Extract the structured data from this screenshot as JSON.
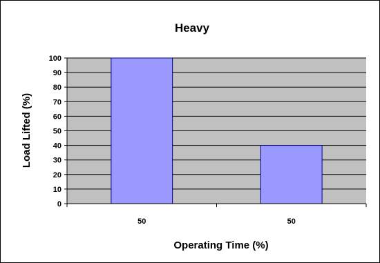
{
  "chart_data": {
    "type": "bar",
    "title": "Heavy",
    "xlabel": "Operating Time (%)",
    "ylabel": "Load Lifted (%)",
    "categories": [
      "50",
      "50"
    ],
    "series": [
      {
        "values": [
          100,
          40
        ]
      }
    ],
    "ylim": [
      0,
      100
    ],
    "yticks": [
      0,
      10,
      20,
      30,
      40,
      50,
      60,
      70,
      80,
      90,
      100
    ],
    "grid": true,
    "legend": "none",
    "colors": {
      "bar_fill": "#9999ff",
      "bar_stroke": "#000080",
      "plot_background": "#c0c0c0",
      "grid_line": "#000000"
    }
  }
}
